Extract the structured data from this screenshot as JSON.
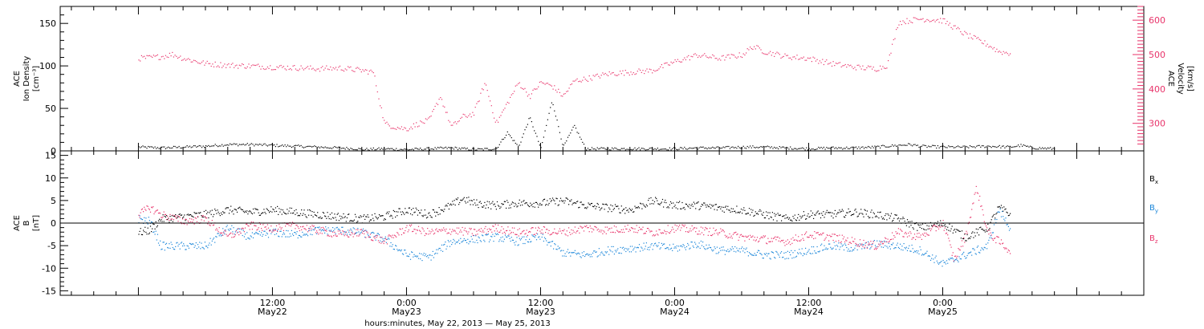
{
  "chart_data": [
    {
      "type": "scatter",
      "panel": "top",
      "ylabel_left": [
        "ACE",
        "Ion Density",
        "[cm⁻³]"
      ],
      "ylabel_right": [
        "ACE",
        "Velocity",
        "[km/s]"
      ],
      "ylim_left": [
        0,
        170
      ],
      "yticks_left": [
        0,
        50,
        100,
        150
      ],
      "ylim_right": [
        220,
        640
      ],
      "yticks_right": [
        300,
        400,
        500,
        600
      ],
      "colors": {
        "density": "#000000",
        "velocity": "#e8336a"
      },
      "series": [
        {
          "name": "Ion Density",
          "axis": "left",
          "color": "#000000",
          "points": [
            [
              0,
              5
            ],
            [
              2,
              4
            ],
            [
              4,
              5
            ],
            [
              6,
              6
            ],
            [
              8,
              8
            ],
            [
              10,
              8
            ],
            [
              12,
              7
            ],
            [
              14,
              6
            ],
            [
              16,
              5
            ],
            [
              18,
              4
            ],
            [
              19.5,
              3
            ],
            [
              20,
              2
            ],
            [
              22,
              3
            ],
            [
              24,
              2
            ],
            [
              26,
              3
            ],
            [
              28,
              4
            ],
            [
              30,
              2
            ],
            [
              32,
              3
            ],
            [
              33,
              22
            ],
            [
              34,
              5
            ],
            [
              35,
              40
            ],
            [
              36,
              3
            ],
            [
              37,
              60
            ],
            [
              38,
              5
            ],
            [
              39,
              30
            ],
            [
              40,
              3
            ],
            [
              42,
              3
            ],
            [
              44,
              3
            ],
            [
              46,
              3
            ],
            [
              48,
              3
            ],
            [
              50,
              4
            ],
            [
              52,
              4
            ],
            [
              54,
              5
            ],
            [
              56,
              5
            ],
            [
              58,
              4
            ],
            [
              60,
              3
            ],
            [
              62,
              4
            ],
            [
              64,
              4
            ],
            [
              66,
              5
            ],
            [
              68,
              7
            ],
            [
              69,
              8
            ],
            [
              70,
              6
            ],
            [
              72,
              5
            ],
            [
              74,
              5
            ],
            [
              76,
              6
            ],
            [
              78,
              5
            ],
            [
              79,
              7
            ],
            [
              80,
              4
            ],
            [
              82,
              3
            ]
          ]
        },
        {
          "name": "Velocity",
          "axis": "right",
          "color": "#e8336a",
          "points": [
            [
              0,
              490
            ],
            [
              2,
              495
            ],
            [
              3,
              502
            ],
            [
              4,
              490
            ],
            [
              6,
              475
            ],
            [
              8,
              470
            ],
            [
              10,
              468
            ],
            [
              12,
              465
            ],
            [
              14,
              463
            ],
            [
              16,
              460
            ],
            [
              18,
              462
            ],
            [
              20,
              455
            ],
            [
              21,
              450
            ],
            [
              22,
              300
            ],
            [
              23,
              290
            ],
            [
              24,
              285
            ],
            [
              25,
              300
            ],
            [
              26,
              310
            ],
            [
              27,
              380
            ],
            [
              28,
              290
            ],
            [
              29,
              320
            ],
            [
              30,
              330
            ],
            [
              31,
              420
            ],
            [
              32,
              300
            ],
            [
              33,
              360
            ],
            [
              34,
              420
            ],
            [
              35,
              380
            ],
            [
              36,
              420
            ],
            [
              37,
              410
            ],
            [
              38,
              380
            ],
            [
              39,
              425
            ],
            [
              40,
              430
            ],
            [
              42,
              445
            ],
            [
              44,
              450
            ],
            [
              46,
              455
            ],
            [
              48,
              480
            ],
            [
              50,
              500
            ],
            [
              52,
              490
            ],
            [
              54,
              500
            ],
            [
              55,
              525
            ],
            [
              56,
              510
            ],
            [
              58,
              495
            ],
            [
              60,
              490
            ],
            [
              62,
              475
            ],
            [
              64,
              465
            ],
            [
              66,
              460
            ],
            [
              67,
              470
            ],
            [
              68,
              595
            ],
            [
              70,
              605
            ],
            [
              72,
              600
            ],
            [
              74,
              560
            ],
            [
              76,
              530
            ],
            [
              77,
              510
            ],
            [
              78,
              505
            ]
          ]
        }
      ],
      "gaps_note": ""
    },
    {
      "type": "scatter",
      "panel": "bottom",
      "ylabel_left": [
        "ACE",
        "B",
        "[nT]"
      ],
      "ylim": [
        -16,
        16
      ],
      "yticks": [
        -15,
        -10,
        -5,
        0,
        5,
        10,
        15
      ],
      "zero_line": true,
      "series": [
        {
          "name": "B",
          "sub": "x",
          "color": "#000000",
          "points": [
            [
              0,
              -2
            ],
            [
              1,
              -1.5
            ],
            [
              2,
              1
            ],
            [
              4,
              1.5
            ],
            [
              6,
              2
            ],
            [
              8,
              3
            ],
            [
              10,
              2.5
            ],
            [
              12,
              3
            ],
            [
              14,
              2.5
            ],
            [
              16,
              2
            ],
            [
              18,
              1.5
            ],
            [
              20,
              1
            ],
            [
              22,
              1.5
            ],
            [
              24,
              3
            ],
            [
              26,
              2
            ],
            [
              28,
              4
            ],
            [
              29,
              5.5
            ],
            [
              30,
              4.5
            ],
            [
              32,
              4
            ],
            [
              34,
              4.5
            ],
            [
              36,
              4.5
            ],
            [
              38,
              5
            ],
            [
              40,
              4
            ],
            [
              42,
              3.5
            ],
            [
              44,
              3
            ],
            [
              46,
              5
            ],
            [
              48,
              4
            ],
            [
              50,
              4
            ],
            [
              52,
              3.5
            ],
            [
              54,
              3
            ],
            [
              56,
              2
            ],
            [
              58,
              1
            ],
            [
              60,
              2
            ],
            [
              62,
              2
            ],
            [
              64,
              2.5
            ],
            [
              66,
              2
            ],
            [
              68,
              1
            ],
            [
              70,
              -1
            ],
            [
              72,
              0
            ],
            [
              74,
              -3
            ],
            [
              76,
              -1
            ],
            [
              77,
              3.5
            ],
            [
              78,
              2
            ]
          ]
        },
        {
          "name": "B",
          "sub": "y",
          "color": "#1a86d9",
          "points": [
            [
              0,
              1
            ],
            [
              1,
              0.5
            ],
            [
              2,
              -5
            ],
            [
              4,
              -5
            ],
            [
              6,
              -5
            ],
            [
              8,
              -1
            ],
            [
              10,
              -3
            ],
            [
              12,
              -2
            ],
            [
              14,
              -2.5
            ],
            [
              16,
              -1.5
            ],
            [
              18,
              -1.5
            ],
            [
              20,
              -2
            ],
            [
              22,
              -3.5
            ],
            [
              24,
              -7
            ],
            [
              26,
              -7.5
            ],
            [
              28,
              -4
            ],
            [
              30,
              -3.5
            ],
            [
              32,
              -3
            ],
            [
              34,
              -4
            ],
            [
              36,
              -3
            ],
            [
              38,
              -6.5
            ],
            [
              40,
              -7
            ],
            [
              42,
              -6
            ],
            [
              44,
              -5.5
            ],
            [
              46,
              -5
            ],
            [
              48,
              -5.5
            ],
            [
              50,
              -4.5
            ],
            [
              52,
              -6
            ],
            [
              54,
              -6
            ],
            [
              56,
              -7
            ],
            [
              58,
              -7
            ],
            [
              60,
              -6
            ],
            [
              62,
              -5
            ],
            [
              64,
              -5.5
            ],
            [
              66,
              -4.5
            ],
            [
              68,
              -5
            ],
            [
              70,
              -6
            ],
            [
              72,
              -9
            ],
            [
              74,
              -7
            ],
            [
              76,
              -5
            ],
            [
              77,
              3
            ],
            [
              78,
              -1
            ]
          ]
        },
        {
          "name": "B",
          "sub": "z",
          "color": "#e8336a",
          "points": [
            [
              0,
              2
            ],
            [
              1,
              3.5
            ],
            [
              2,
              2
            ],
            [
              4,
              0.5
            ],
            [
              6,
              1
            ],
            [
              8,
              -3
            ],
            [
              10,
              -0.5
            ],
            [
              12,
              -1
            ],
            [
              14,
              -0.5
            ],
            [
              16,
              -1.5
            ],
            [
              18,
              -2.5
            ],
            [
              20,
              -2
            ],
            [
              22,
              -4
            ],
            [
              24,
              -1
            ],
            [
              26,
              -2
            ],
            [
              28,
              -1.5
            ],
            [
              30,
              -2
            ],
            [
              32,
              -1
            ],
            [
              34,
              -2
            ],
            [
              36,
              -1.5
            ],
            [
              38,
              -2
            ],
            [
              40,
              -1
            ],
            [
              42,
              -1.5
            ],
            [
              44,
              -1
            ],
            [
              46,
              -2
            ],
            [
              48,
              -1
            ],
            [
              50,
              -1.5
            ],
            [
              52,
              -2
            ],
            [
              54,
              -3
            ],
            [
              56,
              -3.5
            ],
            [
              58,
              -4
            ],
            [
              60,
              -2.5
            ],
            [
              62,
              -3
            ],
            [
              64,
              -4
            ],
            [
              66,
              -5
            ],
            [
              68,
              -2
            ],
            [
              70,
              -3
            ],
            [
              72,
              0
            ],
            [
              73,
              -8
            ],
            [
              74,
              -3
            ],
            [
              75,
              8
            ],
            [
              76,
              -2
            ],
            [
              77,
              -4
            ],
            [
              78,
              -6
            ]
          ]
        }
      ]
    }
  ],
  "x_axis": {
    "range_hours": [
      -7,
      90
    ],
    "ticks": [
      {
        "t": 12,
        "time": "12:00",
        "date": "May22"
      },
      {
        "t": 24,
        "time": "0:00",
        "date": "May23"
      },
      {
        "t": 36,
        "time": "12:00",
        "date": "May23"
      },
      {
        "t": 48,
        "time": "0:00",
        "date": "May24"
      },
      {
        "t": 60,
        "time": "12:00",
        "date": "May24"
      },
      {
        "t": 72,
        "time": "0:00",
        "date": "May25"
      }
    ],
    "title": "hours:minutes, May 22, 2013 — May 25, 2013"
  }
}
